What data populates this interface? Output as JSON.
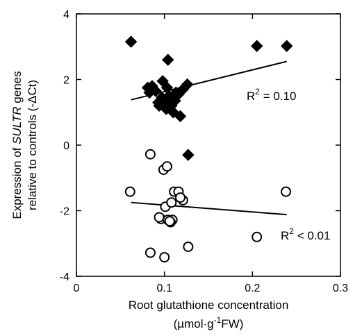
{
  "chart_data": {
    "type": "scatter",
    "xlabel_line1": "Root glutathione concentration",
    "xlabel_line2_parts": [
      "(µmol·g",
      "-1",
      "FW)"
    ],
    "ylabel_line1_parts": [
      "Expression of ",
      "SULTR",
      " genes"
    ],
    "ylabel_line2": "relative to controls (-ΔCt)",
    "xlim": [
      0,
      0.3
    ],
    "ylim": [
      -4,
      4
    ],
    "xticks": [
      0,
      0.1,
      0.2,
      0.3
    ],
    "xtick_labels": [
      "0",
      "0.1",
      "0.2",
      "0.3"
    ],
    "yticks": [
      -4,
      -2,
      0,
      2,
      4
    ],
    "ytick_labels": [
      "-4",
      "-2",
      "0",
      "2",
      "4"
    ],
    "grid": false,
    "series": [
      {
        "marker": "filled-diamond",
        "x": [
          0.062,
          0.104,
          0.205,
          0.239,
          0.081,
          0.083,
          0.086,
          0.09,
          0.094,
          0.098,
          0.1,
          0.103,
          0.105,
          0.108,
          0.11,
          0.113,
          0.116,
          0.118,
          0.121,
          0.126,
          0.093,
          0.097,
          0.102,
          0.112,
          0.127
        ],
        "y": [
          3.15,
          2.6,
          3.02,
          3.02,
          1.75,
          1.6,
          1.8,
          1.65,
          1.2,
          1.95,
          1.3,
          1.75,
          1.5,
          1.2,
          1.0,
          1.6,
          1.55,
          0.88,
          1.7,
          1.85,
          1.3,
          1.45,
          1.1,
          1.35,
          -0.3
        ],
        "fit": {
          "x": [
            0.062,
            0.239
          ],
          "y": [
            1.38,
            2.55
          ]
        },
        "annotation": {
          "base": "R",
          "sup": "2",
          "text": " = 0.10"
        }
      },
      {
        "marker": "open-circle",
        "x": [
          0.061,
          0.084,
          0.099,
          0.103,
          0.111,
          0.116,
          0.121,
          0.238,
          0.101,
          0.108,
          0.118,
          0.096,
          0.104,
          0.109,
          0.094,
          0.107,
          0.106,
          0.205,
          0.084,
          0.1,
          0.127
        ],
        "y": [
          -1.42,
          -0.28,
          -0.75,
          -0.65,
          -1.42,
          -1.42,
          -1.68,
          -1.42,
          -1.88,
          -1.75,
          -1.6,
          -2.25,
          -2.28,
          -2.28,
          -2.2,
          -2.35,
          -2.32,
          -2.8,
          -3.28,
          -3.42,
          -3.1
        ],
        "fit": {
          "x": [
            0.062,
            0.239
          ],
          "y": [
            -1.75,
            -2.12
          ]
        },
        "annotation": {
          "base": "R",
          "sup": "2",
          "text": " < 0.01"
        }
      }
    ]
  }
}
